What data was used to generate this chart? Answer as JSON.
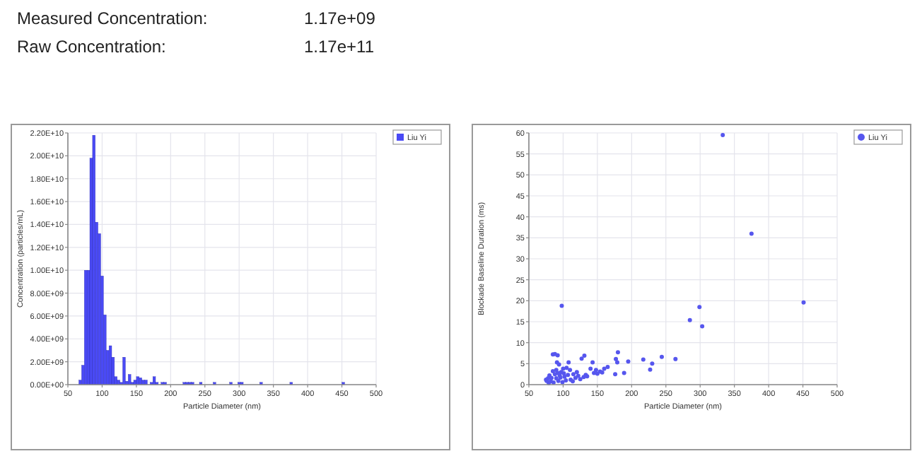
{
  "chart_data": [
    {
      "type": "other",
      "annotations": [
        "Measured Concentration:",
        "1.17e+09",
        "Raw Concentration:",
        "1.17e+11"
      ]
    },
    {
      "type": "histogram",
      "xlabel": "Particle Diameter (nm)",
      "ylabel": "Concentration (particles/mL)",
      "xlim": [
        50,
        500
      ],
      "xticks": [
        50,
        100,
        150,
        200,
        250,
        300,
        350,
        400,
        450,
        500
      ],
      "ylim": [
        0,
        22000000000.0
      ],
      "yticks": [
        {
          "value": 0,
          "label": "0.00E+00"
        },
        {
          "value": 2000000000.0,
          "label": "2.00E+09"
        },
        {
          "value": 4000000000.0,
          "label": "4.00E+09"
        },
        {
          "value": 6000000000.0,
          "label": "6.00E+09"
        },
        {
          "value": 8000000000.0,
          "label": "8.00E+09"
        },
        {
          "value": 10000000000.0,
          "label": "1.00E+10"
        },
        {
          "value": 12000000000.0,
          "label": "1.20E+10"
        },
        {
          "value": 14000000000.0,
          "label": "1.40E+10"
        },
        {
          "value": 16000000000.0,
          "label": "1.60E+10"
        },
        {
          "value": 18000000000.0,
          "label": "1.80E+10"
        },
        {
          "value": 20000000000.0,
          "label": "2.00E+10"
        },
        {
          "value": 22000000000.0,
          "label": "2.20E+10"
        }
      ],
      "grid": true,
      "legend": "top right",
      "bins": [
        66,
        70,
        74,
        78,
        82,
        86,
        90,
        94,
        98,
        102,
        106,
        110,
        114,
        118,
        122,
        126,
        130,
        134,
        138,
        142,
        146,
        150,
        154,
        158,
        162,
        166,
        170,
        174,
        178,
        182,
        186,
        190,
        194,
        218,
        222,
        226,
        230,
        234,
        242,
        246,
        262,
        266,
        286,
        290,
        298,
        302,
        306,
        330,
        334,
        374,
        378,
        450,
        454
      ],
      "series": [
        {
          "name": "Liu Yi",
          "color": "#4a4af5",
          "values": [
            400000000.0,
            1700000000.0,
            10000000000.0,
            10000000000.0,
            19800000000.0,
            21800000000.0,
            14200000000.0,
            13200000000.0,
            9500000000.0,
            6100000000.0,
            3000000000.0,
            3400000000.0,
            2400000000.0,
            700000000.0,
            400000000.0,
            200000000.0,
            2400000000.0,
            300000000.0,
            900000000.0,
            200000000.0,
            400000000.0,
            700000000.0,
            600000000.0,
            400000000.0,
            400000000.0,
            null,
            200000000.0,
            700000000.0,
            200000000.0,
            null,
            200000000.0,
            200000000.0,
            null,
            200000000.0,
            200000000.0,
            200000000.0,
            200000000.0,
            null,
            200000000.0,
            null,
            200000000.0,
            null,
            200000000.0,
            null,
            200000000.0,
            200000000.0,
            null,
            200000000.0,
            null,
            200000000.0,
            null,
            200000000.0
          ]
        }
      ]
    },
    {
      "type": "scatter",
      "xlabel": "Particle Diameter (nm)",
      "ylabel": "Blockade Baseline Duration (ms)",
      "xlim": [
        50,
        500
      ],
      "xticks": [
        50,
        100,
        150,
        200,
        250,
        300,
        350,
        400,
        450,
        500
      ],
      "ylim": [
        0,
        60
      ],
      "yticks": [
        0,
        5,
        10,
        15,
        20,
        25,
        30,
        35,
        40,
        45,
        50,
        55,
        60
      ],
      "grid": true,
      "legend": "top right",
      "marker": "circle",
      "x": [
        98,
        333,
        375,
        451,
        299,
        285,
        303,
        244,
        264,
        217,
        230,
        227,
        195,
        180,
        177,
        179,
        176,
        189,
        160,
        154,
        150,
        143,
        131,
        127,
        108,
        85,
        88,
        92,
        91,
        94,
        75,
        140,
        135,
        120,
        115,
        110,
        105,
        100,
        97,
        95,
        90,
        85,
        80,
        78,
        82,
        86,
        90,
        93,
        96,
        99,
        102,
        104,
        107,
        111,
        114,
        118,
        122,
        125,
        130,
        133,
        145,
        148,
        157,
        165,
        88,
        83,
        79,
        92,
        101,
        76
      ],
      "series": [
        {
          "name": "Liu Yi",
          "color": "#5656ee",
          "values": [
            18.8,
            59.5,
            36,
            19.6,
            18.5,
            15.4,
            13.9,
            6.6,
            6.1,
            6,
            5,
            3.6,
            5.5,
            7.7,
            6.1,
            5.3,
            2.5,
            2.8,
            3.8,
            3.1,
            2.6,
            5.3,
            6.9,
            6.2,
            5.3,
            7.2,
            7.3,
            7,
            5.3,
            4.8,
            1.2,
            3.8,
            2,
            3,
            2.5,
            3.5,
            4,
            3.8,
            3,
            2.2,
            3.5,
            3.2,
            2.2,
            1.5,
            0.8,
            0.5,
            1.5,
            0.9,
            1.7,
            0.6,
            1.9,
            1,
            2.3,
            1.2,
            0.8,
            1.6,
            2.1,
            1.3,
            1.8,
            2.3,
            2.8,
            3.5,
            2.9,
            4.2,
            2.5,
            1.6,
            0.4,
            2.8,
            2.7,
            0.9
          ]
        }
      ]
    }
  ]
}
